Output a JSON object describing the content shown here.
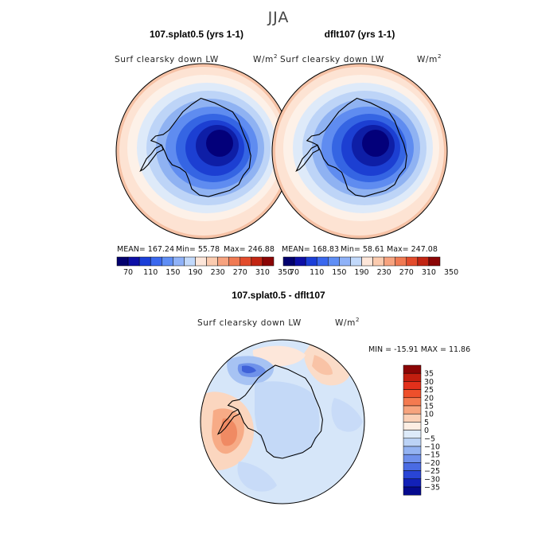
{
  "figure": {
    "season": "JJA",
    "panels": [
      {
        "title": "107.splat0.5 (yrs 1-1)",
        "variable": "Surf clearsky down LW",
        "units": "W/m",
        "units_sup": "2",
        "stats": {
          "mean": "MEAN= 167.24",
          "min": "Min= 55.78",
          "max": "Max= 246.88"
        }
      },
      {
        "title": "dflt107 (yrs 1-1)",
        "variable": "Surf clearsky down LW",
        "units": "W/m",
        "units_sup": "2",
        "stats": {
          "mean": "MEAN= 168.83",
          "min": "Min= 58.61",
          "max": "Max= 247.08"
        }
      }
    ],
    "diff_panel": {
      "title": "107.splat0.5 - dflt107",
      "variable": "Surf clearsky down LW",
      "units": "W/m",
      "units_sup": "2",
      "minmax": "MIN = -15.91 MAX = 11.86"
    }
  },
  "legend_abs": {
    "colors": [
      "#02006e",
      "#0d0fa6",
      "#1b3fd8",
      "#3a68ee",
      "#5f8ef5",
      "#8fb2f8",
      "#c2d9fb",
      "#fde6d9",
      "#fbcbaf",
      "#f7a37f",
      "#f07a53",
      "#e34c2c",
      "#c22513",
      "#8b0505"
    ],
    "tick_labels": [
      "70",
      "110",
      "150",
      "190",
      "230",
      "270",
      "310",
      "350"
    ]
  },
  "legend_diff": {
    "colors": [
      "#8b0505",
      "#c21e0f",
      "#e2301b",
      "#ee4f2b",
      "#f47a50",
      "#f7a47e",
      "#fbd0b6",
      "#fdeee3",
      "#ddeaf9",
      "#bcd3f6",
      "#94b3f2",
      "#6f90ec",
      "#4a6be3",
      "#2945d6",
      "#1221b8",
      "#050a8e"
    ],
    "tick_labels": [
      "35",
      "30",
      "25",
      "20",
      "15",
      "10",
      "5",
      "0",
      "−5",
      "−10",
      "−15",
      "−20",
      "−25",
      "−30",
      "−35"
    ]
  }
}
